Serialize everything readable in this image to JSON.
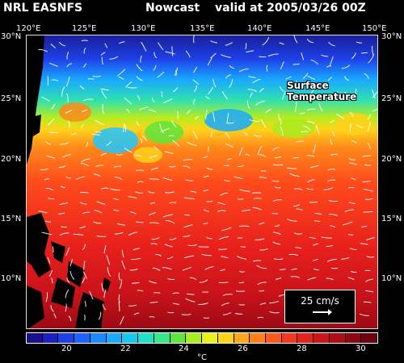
{
  "header": {
    "source": "NRL EASNFS",
    "product": "Nowcast",
    "valid": "valid at 2005/03/26 00Z"
  },
  "map": {
    "field_title": "Surface Temperature",
    "lon_ticks": [
      "120°E",
      "125°E",
      "130°E",
      "135°E",
      "140°E",
      "145°E",
      "150°E"
    ],
    "lat_ticks": [
      "30°N",
      "25°N",
      "20°N",
      "15°N",
      "10°N"
    ],
    "scale_label": "25 cm/s"
  },
  "colorbar": {
    "unit": "°C",
    "labels": [
      "20",
      "22",
      "24",
      "26",
      "28",
      "30"
    ],
    "colors": [
      "#1a0f8f",
      "#1b20c0",
      "#1e40e8",
      "#2060ff",
      "#1c88ff",
      "#19aaff",
      "#16c8f0",
      "#22e0c8",
      "#35e88a",
      "#5fe63a",
      "#a8ec1e",
      "#e8f01a",
      "#ffd21a",
      "#ffa61a",
      "#ff7f1a",
      "#ff571c",
      "#f5361e",
      "#e3221c",
      "#cc141a",
      "#b00c18",
      "#8e0814",
      "#6c0410"
    ]
  }
}
